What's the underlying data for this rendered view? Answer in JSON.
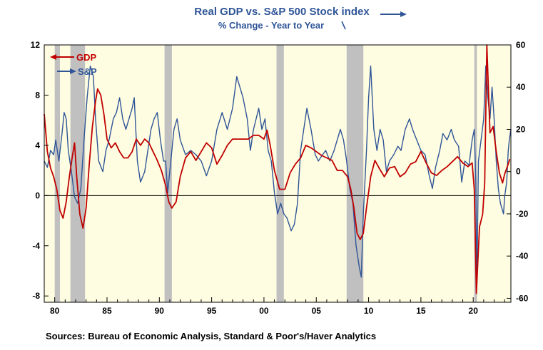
{
  "chart_data": {
    "type": "line",
    "title": "Real GDP vs. S&P 500 Stock index",
    "subtitle": "% Change - Year to Year",
    "source": "Sources:  Bureau of Economic Analysis, Standard & Poor's/Haver Analytics",
    "x_range": [
      1979.0,
      2023.6
    ],
    "x_ticks": [
      {
        "year": 1980,
        "label": "80"
      },
      {
        "year": 1985,
        "label": "85"
      },
      {
        "year": 1990,
        "label": "90"
      },
      {
        "year": 1995,
        "label": "95"
      },
      {
        "year": 2000,
        "label": "00"
      },
      {
        "year": 2005,
        "label": "05"
      },
      {
        "year": 2010,
        "label": "10"
      },
      {
        "year": 2015,
        "label": "15"
      },
      {
        "year": 2020,
        "label": "20"
      }
    ],
    "y_left": {
      "range": [
        -8.5,
        12
      ],
      "ticks": [
        {
          "value": 12,
          "label": "12"
        },
        {
          "value": 8,
          "label": "8"
        },
        {
          "value": 4,
          "label": "4"
        },
        {
          "value": 0,
          "label": "0"
        },
        {
          "value": -4,
          "label": "-4"
        },
        {
          "value": -8,
          "label": "-8"
        }
      ]
    },
    "y_right": {
      "range": [
        -61.875,
        60
      ],
      "ticks": [
        {
          "value": 60,
          "label": "60"
        },
        {
          "value": 40,
          "label": "40"
        },
        {
          "value": 20,
          "label": "20"
        },
        {
          "value": 0,
          "label": "0"
        },
        {
          "value": -20,
          "label": "-20"
        },
        {
          "value": -40,
          "label": "-40"
        },
        {
          "value": -60,
          "label": "-60"
        }
      ]
    },
    "recessions": [
      [
        1980.0,
        1980.5
      ],
      [
        1981.5,
        1982.9
      ],
      [
        1990.5,
        1991.2
      ],
      [
        2001.2,
        2001.9
      ],
      [
        2007.9,
        2009.5
      ],
      [
        2020.1,
        2020.35
      ]
    ],
    "series": [
      {
        "name": "GDP",
        "axis": "left",
        "color": "#c00000",
        "points": [
          [
            1979.0,
            6.5
          ],
          [
            1979.3,
            3.5
          ],
          [
            1979.6,
            2.2
          ],
          [
            1979.9,
            1.5
          ],
          [
            1980.2,
            0.5
          ],
          [
            1980.5,
            -1.2
          ],
          [
            1980.8,
            -1.8
          ],
          [
            1981.1,
            -0.5
          ],
          [
            1981.4,
            1.5
          ],
          [
            1981.7,
            3.2
          ],
          [
            1981.9,
            4.2
          ],
          [
            1982.1,
            1.5
          ],
          [
            1982.4,
            -1.5
          ],
          [
            1982.7,
            -2.6
          ],
          [
            1983.0,
            -1.0
          ],
          [
            1983.3,
            2.5
          ],
          [
            1983.6,
            5.5
          ],
          [
            1983.9,
            7.5
          ],
          [
            1984.1,
            8.5
          ],
          [
            1984.4,
            8.0
          ],
          [
            1984.7,
            6.5
          ],
          [
            1985.0,
            4.5
          ],
          [
            1985.4,
            3.8
          ],
          [
            1985.8,
            4.2
          ],
          [
            1986.2,
            3.5
          ],
          [
            1986.6,
            3.0
          ],
          [
            1987.0,
            3.0
          ],
          [
            1987.4,
            3.5
          ],
          [
            1987.8,
            4.5
          ],
          [
            1988.2,
            4.0
          ],
          [
            1988.6,
            4.5
          ],
          [
            1989.0,
            4.2
          ],
          [
            1989.4,
            3.5
          ],
          [
            1989.8,
            2.8
          ],
          [
            1990.2,
            2.0
          ],
          [
            1990.6,
            0.8
          ],
          [
            1990.9,
            -0.5
          ],
          [
            1991.2,
            -1.0
          ],
          [
            1991.6,
            -0.5
          ],
          [
            1992.0,
            1.5
          ],
          [
            1992.5,
            3.0
          ],
          [
            1993.0,
            3.5
          ],
          [
            1993.5,
            2.8
          ],
          [
            1994.0,
            3.5
          ],
          [
            1994.5,
            4.2
          ],
          [
            1995.0,
            3.8
          ],
          [
            1995.5,
            2.5
          ],
          [
            1996.0,
            3.2
          ],
          [
            1996.5,
            4.0
          ],
          [
            1997.0,
            4.5
          ],
          [
            1997.5,
            4.5
          ],
          [
            1998.0,
            4.5
          ],
          [
            1998.5,
            4.5
          ],
          [
            1999.0,
            4.8
          ],
          [
            1999.5,
            4.8
          ],
          [
            2000.0,
            4.5
          ],
          [
            2000.3,
            5.2
          ],
          [
            2000.6,
            4.0
          ],
          [
            2001.0,
            2.0
          ],
          [
            2001.5,
            0.5
          ],
          [
            2002.0,
            0.5
          ],
          [
            2002.5,
            1.8
          ],
          [
            2003.0,
            2.5
          ],
          [
            2003.5,
            3.0
          ],
          [
            2004.0,
            4.0
          ],
          [
            2004.5,
            3.8
          ],
          [
            2005.0,
            3.5
          ],
          [
            2005.5,
            3.2
          ],
          [
            2006.0,
            3.0
          ],
          [
            2006.5,
            2.8
          ],
          [
            2007.0,
            2.0
          ],
          [
            2007.5,
            2.0
          ],
          [
            2008.0,
            1.5
          ],
          [
            2008.3,
            0.5
          ],
          [
            2008.6,
            -1.0
          ],
          [
            2008.9,
            -3.0
          ],
          [
            2009.2,
            -3.5
          ],
          [
            2009.5,
            -3.0
          ],
          [
            2009.8,
            -1.0
          ],
          [
            2010.2,
            1.5
          ],
          [
            2010.6,
            2.8
          ],
          [
            2011.0,
            2.2
          ],
          [
            2011.5,
            1.5
          ],
          [
            2012.0,
            2.2
          ],
          [
            2012.5,
            2.3
          ],
          [
            2013.0,
            1.5
          ],
          [
            2013.5,
            1.8
          ],
          [
            2014.0,
            2.5
          ],
          [
            2014.5,
            2.7
          ],
          [
            2015.0,
            3.5
          ],
          [
            2015.5,
            2.6
          ],
          [
            2016.0,
            1.8
          ],
          [
            2016.5,
            1.6
          ],
          [
            2017.0,
            2.0
          ],
          [
            2017.5,
            2.3
          ],
          [
            2018.0,
            2.7
          ],
          [
            2018.5,
            3.1
          ],
          [
            2019.0,
            2.6
          ],
          [
            2019.5,
            2.3
          ],
          [
            2019.9,
            2.6
          ],
          [
            2020.1,
            0.5
          ],
          [
            2020.3,
            -7.8
          ],
          [
            2020.6,
            -2.5
          ],
          [
            2020.9,
            -1.5
          ],
          [
            2021.1,
            1.0
          ],
          [
            2021.3,
            12.0
          ],
          [
            2021.6,
            5.0
          ],
          [
            2021.9,
            5.5
          ],
          [
            2022.2,
            3.5
          ],
          [
            2022.5,
            1.8
          ],
          [
            2022.8,
            1.0
          ],
          [
            2023.0,
            1.7
          ],
          [
            2023.3,
            2.4
          ],
          [
            2023.5,
            2.9
          ]
        ]
      },
      {
        "name": "S&P",
        "axis": "right",
        "color": "#2f5597",
        "points": [
          [
            1979.0,
            5
          ],
          [
            1979.3,
            2
          ],
          [
            1979.6,
            10
          ],
          [
            1979.9,
            8
          ],
          [
            1980.1,
            15
          ],
          [
            1980.4,
            5
          ],
          [
            1980.7,
            18
          ],
          [
            1980.9,
            28
          ],
          [
            1981.1,
            25
          ],
          [
            1981.3,
            10
          ],
          [
            1981.6,
            0
          ],
          [
            1981.9,
            -12
          ],
          [
            1982.2,
            -15
          ],
          [
            1982.5,
            -8
          ],
          [
            1982.8,
            15
          ],
          [
            1983.1,
            35
          ],
          [
            1983.4,
            50
          ],
          [
            1983.7,
            45
          ],
          [
            1983.9,
            25
          ],
          [
            1984.2,
            5
          ],
          [
            1984.6,
            0
          ],
          [
            1984.9,
            10
          ],
          [
            1985.2,
            15
          ],
          [
            1985.6,
            25
          ],
          [
            1985.9,
            28
          ],
          [
            1986.2,
            35
          ],
          [
            1986.5,
            25
          ],
          [
            1986.8,
            20
          ],
          [
            1987.1,
            25
          ],
          [
            1987.4,
            30
          ],
          [
            1987.6,
            35
          ],
          [
            1987.9,
            5
          ],
          [
            1988.2,
            -5
          ],
          [
            1988.6,
            0
          ],
          [
            1988.9,
            10
          ],
          [
            1989.2,
            20
          ],
          [
            1989.5,
            25
          ],
          [
            1989.8,
            28
          ],
          [
            1990.1,
            15
          ],
          [
            1990.4,
            5
          ],
          [
            1990.6,
            5
          ],
          [
            1990.8,
            -10
          ],
          [
            1991.1,
            5
          ],
          [
            1991.4,
            20
          ],
          [
            1991.7,
            25
          ],
          [
            1992.0,
            15
          ],
          [
            1992.5,
            8
          ],
          [
            1993.0,
            10
          ],
          [
            1993.5,
            8
          ],
          [
            1994.0,
            5
          ],
          [
            1994.5,
            -2
          ],
          [
            1995.0,
            5
          ],
          [
            1995.5,
            20
          ],
          [
            1996.0,
            28
          ],
          [
            1996.5,
            20
          ],
          [
            1997.0,
            30
          ],
          [
            1997.4,
            45
          ],
          [
            1997.7,
            40
          ],
          [
            1998.0,
            35
          ],
          [
            1998.4,
            25
          ],
          [
            1998.7,
            10
          ],
          [
            1999.0,
            20
          ],
          [
            1999.5,
            30
          ],
          [
            1999.8,
            20
          ],
          [
            2000.1,
            25
          ],
          [
            2000.4,
            10
          ],
          [
            2000.7,
            5
          ],
          [
            2001.0,
            -10
          ],
          [
            2001.3,
            -20
          ],
          [
            2001.6,
            -15
          ],
          [
            2001.9,
            -20
          ],
          [
            2002.2,
            -22
          ],
          [
            2002.6,
            -28
          ],
          [
            2002.9,
            -25
          ],
          [
            2003.2,
            -15
          ],
          [
            2003.5,
            10
          ],
          [
            2003.8,
            20
          ],
          [
            2004.1,
            30
          ],
          [
            2004.5,
            20
          ],
          [
            2004.9,
            8
          ],
          [
            2005.2,
            5
          ],
          [
            2005.6,
            8
          ],
          [
            2005.9,
            10
          ],
          [
            2006.3,
            5
          ],
          [
            2006.7,
            10
          ],
          [
            2007.0,
            15
          ],
          [
            2007.3,
            20
          ],
          [
            2007.6,
            15
          ],
          [
            2007.9,
            5
          ],
          [
            2008.2,
            -8
          ],
          [
            2008.5,
            -15
          ],
          [
            2008.8,
            -35
          ],
          [
            2009.1,
            -45
          ],
          [
            2009.3,
            -50
          ],
          [
            2009.5,
            -20
          ],
          [
            2009.8,
            10
          ],
          [
            2010.0,
            35
          ],
          [
            2010.2,
            50
          ],
          [
            2010.5,
            20
          ],
          [
            2010.8,
            10
          ],
          [
            2011.1,
            20
          ],
          [
            2011.4,
            15
          ],
          [
            2011.7,
            0
          ],
          [
            2012.0,
            5
          ],
          [
            2012.4,
            8
          ],
          [
            2012.8,
            12
          ],
          [
            2013.1,
            10
          ],
          [
            2013.5,
            20
          ],
          [
            2013.9,
            25
          ],
          [
            2014.2,
            20
          ],
          [
            2014.6,
            15
          ],
          [
            2015.0,
            10
          ],
          [
            2015.4,
            8
          ],
          [
            2015.8,
            -2
          ],
          [
            2016.1,
            -8
          ],
          [
            2016.4,
            2
          ],
          [
            2016.8,
            10
          ],
          [
            2017.1,
            18
          ],
          [
            2017.5,
            15
          ],
          [
            2017.9,
            20
          ],
          [
            2018.2,
            15
          ],
          [
            2018.6,
            12
          ],
          [
            2018.9,
            -5
          ],
          [
            2019.2,
            5
          ],
          [
            2019.6,
            3
          ],
          [
            2019.9,
            15
          ],
          [
            2020.1,
            20
          ],
          [
            2020.25,
            -5
          ],
          [
            2020.35,
            -55
          ],
          [
            2020.5,
            5
          ],
          [
            2020.75,
            15
          ],
          [
            2021.0,
            25
          ],
          [
            2021.2,
            50
          ],
          [
            2021.4,
            35
          ],
          [
            2021.6,
            25
          ],
          [
            2021.8,
            40
          ],
          [
            2022.0,
            25
          ],
          [
            2022.2,
            5
          ],
          [
            2022.4,
            -8
          ],
          [
            2022.6,
            -15
          ],
          [
            2022.9,
            -20
          ],
          [
            2023.0,
            -12
          ],
          [
            2023.2,
            -5
          ],
          [
            2023.35,
            10
          ],
          [
            2023.45,
            15
          ],
          [
            2023.6,
            20
          ]
        ]
      }
    ]
  }
}
